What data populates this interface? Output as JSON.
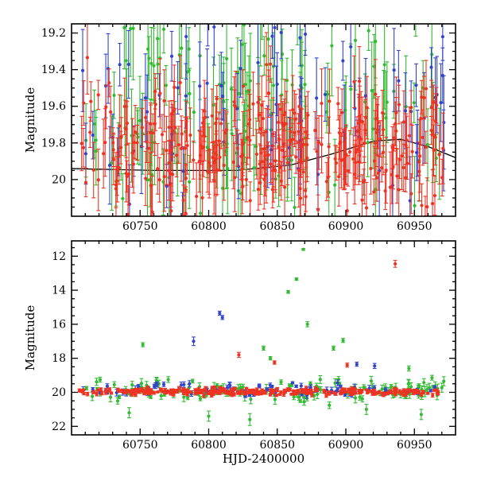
{
  "figure": {
    "background": "#ffffff",
    "axis_color": "#000000"
  },
  "chart_data": [
    {
      "type": "scatter",
      "panel": "top",
      "title": "",
      "ylabel": "Magnitude",
      "xlabel": "",
      "xlim": [
        60700,
        60980
      ],
      "ylim_top": 19.15,
      "ylim_bottom": 20.2,
      "xticks": [
        60750,
        60800,
        60850,
        60900,
        60950
      ],
      "xtick_labels": [
        "60750",
        "60800",
        "60850",
        "60900",
        "60950"
      ],
      "x_minor_step": 10,
      "yticks": [
        19.2,
        19.4,
        19.6,
        19.8,
        20
      ],
      "ytick_labels": [
        "19.2",
        "19.4",
        "19.6",
        "19.8",
        "20"
      ],
      "y_minor_step": 0.05,
      "show_x_labels": true,
      "x_clusters": [
        {
          "range": [
            60705,
            60728
          ],
          "w": 0.05
        },
        {
          "range": [
            60728,
            60802
          ],
          "w": 0.28
        },
        {
          "range": [
            60802,
            60872
          ],
          "w": 0.33
        },
        {
          "range": [
            60872,
            60896
          ],
          "w": 0.06
        },
        {
          "range": [
            60896,
            60972
          ],
          "w": 0.28
        }
      ],
      "series": [
        {
          "name": "green-series",
          "color": "#33bb33",
          "n": 150,
          "mag_mean": 19.62,
          "mag_sd": 0.3,
          "err_min": 0.1,
          "err_max": 0.28,
          "seed": 101
        },
        {
          "name": "blue-series",
          "color": "#3344cc",
          "n": 85,
          "mag_mean": 19.6,
          "mag_sd": 0.28,
          "err_min": 0.1,
          "err_max": 0.26,
          "seed": 202
        },
        {
          "name": "red-series",
          "color": "#ee3322",
          "n": 330,
          "mag_mean": 19.8,
          "mag_sd": 0.17,
          "err_min": 0.07,
          "err_max": 0.2,
          "seed": 303
        }
      ],
      "outliers": [],
      "trend_line": {
        "color": "#000000",
        "points": [
          [
            60700,
            19.94
          ],
          [
            60760,
            19.95
          ],
          [
            60820,
            19.95
          ],
          [
            60860,
            19.92
          ],
          [
            60890,
            19.86
          ],
          [
            60920,
            19.79
          ],
          [
            60940,
            19.78
          ],
          [
            60960,
            19.82
          ],
          [
            60980,
            19.88
          ]
        ]
      }
    },
    {
      "type": "scatter",
      "panel": "bottom",
      "title": "",
      "ylabel": "Magnitude",
      "xlabel": "HJD-2400000",
      "xlim": [
        60700,
        60980
      ],
      "ylim_top": 11.1,
      "ylim_bottom": 22.5,
      "xticks": [
        60750,
        60800,
        60850,
        60900,
        60950
      ],
      "xtick_labels": [
        "60750",
        "60800",
        "60850",
        "60900",
        "60950"
      ],
      "x_minor_step": 10,
      "yticks": [
        12,
        14,
        16,
        18,
        20,
        22
      ],
      "ytick_labels": [
        "12",
        "14",
        "16",
        "18",
        "20",
        "22"
      ],
      "y_minor_step": 0.5,
      "show_x_labels": true,
      "x_clusters": [
        {
          "range": [
            60705,
            60742
          ],
          "w": 0.1
        },
        {
          "range": [
            60742,
            60880
          ],
          "w": 0.55
        },
        {
          "range": [
            60880,
            60972
          ],
          "w": 0.35
        }
      ],
      "series": [
        {
          "name": "green-series",
          "color": "#33bb33",
          "n": 140,
          "mag_mean": 19.9,
          "mag_sd": 0.33,
          "err_min": 0.08,
          "err_max": 0.3,
          "seed": 404
        },
        {
          "name": "blue-series",
          "color": "#3344cc",
          "n": 75,
          "mag_mean": 19.8,
          "mag_sd": 0.2,
          "err_min": 0.06,
          "err_max": 0.2,
          "seed": 505
        },
        {
          "name": "red-series",
          "color": "#ee3322",
          "n": 310,
          "mag_mean": 19.97,
          "mag_sd": 0.1,
          "err_min": 0.04,
          "err_max": 0.12,
          "seed": 606
        }
      ],
      "outliers": [
        {
          "series": 0,
          "x": 60752,
          "mag": 17.2,
          "err": 0.12
        },
        {
          "series": 1,
          "x": 60789,
          "mag": 17.0,
          "err": 0.25
        },
        {
          "series": 1,
          "x": 60808,
          "mag": 15.35,
          "err": 0.12
        },
        {
          "series": 1,
          "x": 60810,
          "mag": 15.6,
          "err": 0.12
        },
        {
          "series": 2,
          "x": 60822,
          "mag": 17.8,
          "err": 0.15
        },
        {
          "series": 0,
          "x": 60840,
          "mag": 17.4,
          "err": 0.12
        },
        {
          "series": 0,
          "x": 60845,
          "mag": 18.0,
          "err": 0.1
        },
        {
          "series": 2,
          "x": 60848,
          "mag": 18.25,
          "err": 0.1
        },
        {
          "series": 0,
          "x": 60858,
          "mag": 14.1,
          "err": 0.08
        },
        {
          "series": 0,
          "x": 60864,
          "mag": 13.35,
          "err": 0.07
        },
        {
          "series": 0,
          "x": 60869,
          "mag": 11.6,
          "err": 0.05
        },
        {
          "series": 0,
          "x": 60872,
          "mag": 16.0,
          "err": 0.15
        },
        {
          "series": 0,
          "x": 60891,
          "mag": 17.4,
          "err": 0.12
        },
        {
          "series": 0,
          "x": 60898,
          "mag": 16.95,
          "err": 0.12
        },
        {
          "series": 2,
          "x": 60901,
          "mag": 18.4,
          "err": 0.12
        },
        {
          "series": 1,
          "x": 60908,
          "mag": 18.35,
          "err": 0.12
        },
        {
          "series": 1,
          "x": 60921,
          "mag": 18.45,
          "err": 0.15
        },
        {
          "series": 2,
          "x": 60936,
          "mag": 12.45,
          "err": 0.2
        },
        {
          "series": 0,
          "x": 60946,
          "mag": 18.6,
          "err": 0.15
        },
        {
          "series": 0,
          "x": 60742,
          "mag": 21.2,
          "err": 0.3
        },
        {
          "series": 0,
          "x": 60800,
          "mag": 21.4,
          "err": 0.3
        },
        {
          "series": 0,
          "x": 60830,
          "mag": 21.6,
          "err": 0.35
        },
        {
          "series": 0,
          "x": 60915,
          "mag": 21.0,
          "err": 0.3
        },
        {
          "series": 0,
          "x": 60955,
          "mag": 21.3,
          "err": 0.3
        }
      ],
      "trend_line": null
    }
  ]
}
